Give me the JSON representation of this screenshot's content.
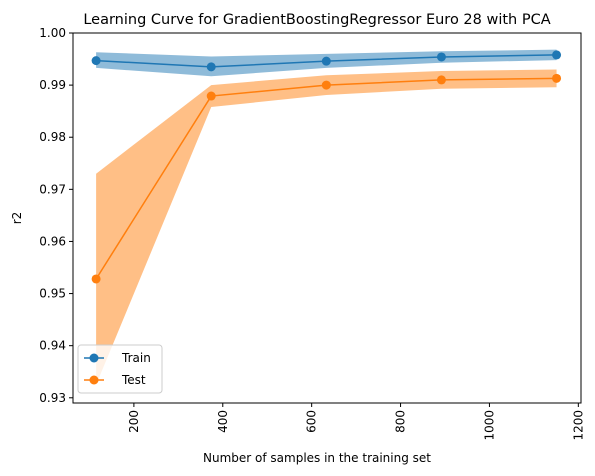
{
  "chart_data": {
    "type": "line",
    "title": "Learning Curve for GradientBoostingRegressor Euro 28 with PCA",
    "xlabel": "Number of samples in the training set",
    "ylabel": "r2",
    "xlim": [
      63,
      1206
    ],
    "ylim": [
      0.929,
      1.0
    ],
    "xticks": [
      200,
      400,
      600,
      800,
      1000,
      1200
    ],
    "xtick_labels": [
      "200",
      "400",
      "600",
      "800",
      "1000",
      "1200"
    ],
    "yticks": [
      0.93,
      0.94,
      0.95,
      0.96,
      0.97,
      0.98,
      0.99,
      1.0
    ],
    "ytick_labels": [
      "0.93",
      "0.94",
      "0.95",
      "0.96",
      "0.97",
      "0.98",
      "0.99",
      "1.00"
    ],
    "xtick_rotation": 90,
    "grid": false,
    "legend_position": "lower-left",
    "x": [
      115,
      374,
      633,
      892,
      1151
    ],
    "series": [
      {
        "name": "Train",
        "color": "#1f77b4",
        "values": [
          0.9947,
          0.9935,
          0.9946,
          0.9954,
          0.9958
        ],
        "lower": [
          0.9933,
          0.9917,
          0.9933,
          0.9943,
          0.9948
        ],
        "upper": [
          0.9963,
          0.9955,
          0.996,
          0.9965,
          0.9968
        ]
      },
      {
        "name": "Test",
        "color": "#ff7f0e",
        "values": [
          0.9528,
          0.9879,
          0.99,
          0.991,
          0.9913
        ],
        "lower": [
          0.9325,
          0.9858,
          0.9881,
          0.9893,
          0.9896
        ],
        "upper": [
          0.973,
          0.99,
          0.9919,
          0.9927,
          0.993
        ]
      }
    ]
  }
}
